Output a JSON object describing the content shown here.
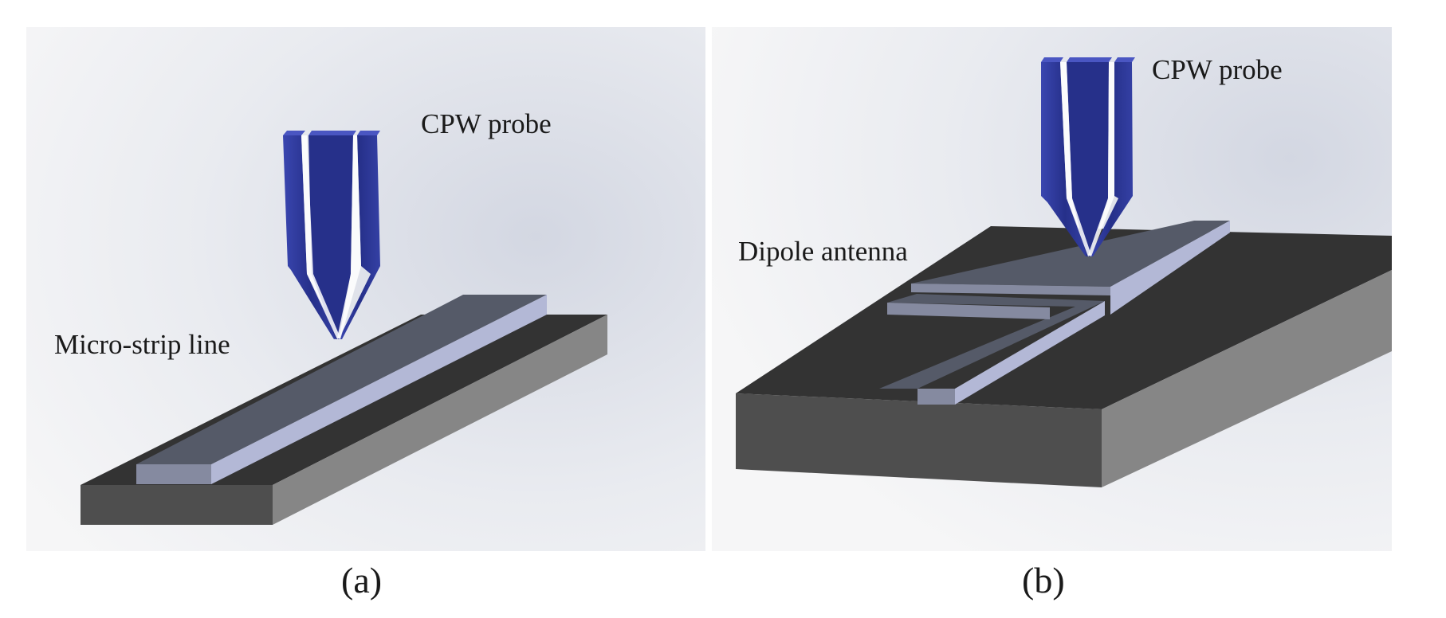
{
  "panels": [
    {
      "id": "a",
      "caption": "(a)",
      "labels": {
        "probe": "CPW probe",
        "device": "Micro-strip line"
      }
    },
    {
      "id": "b",
      "caption": "(b)",
      "labels": {
        "probe": "CPW probe",
        "device": "Dipole antenna"
      }
    }
  ],
  "colors": {
    "probe": "#2b3591",
    "substrate_top": "#333333",
    "substrate_front": "#4e4e4e",
    "substrate_side": "#868686",
    "metal_top": "#555a68",
    "metal_side": "#b3b8d6",
    "metal_front": "#858aa0"
  }
}
